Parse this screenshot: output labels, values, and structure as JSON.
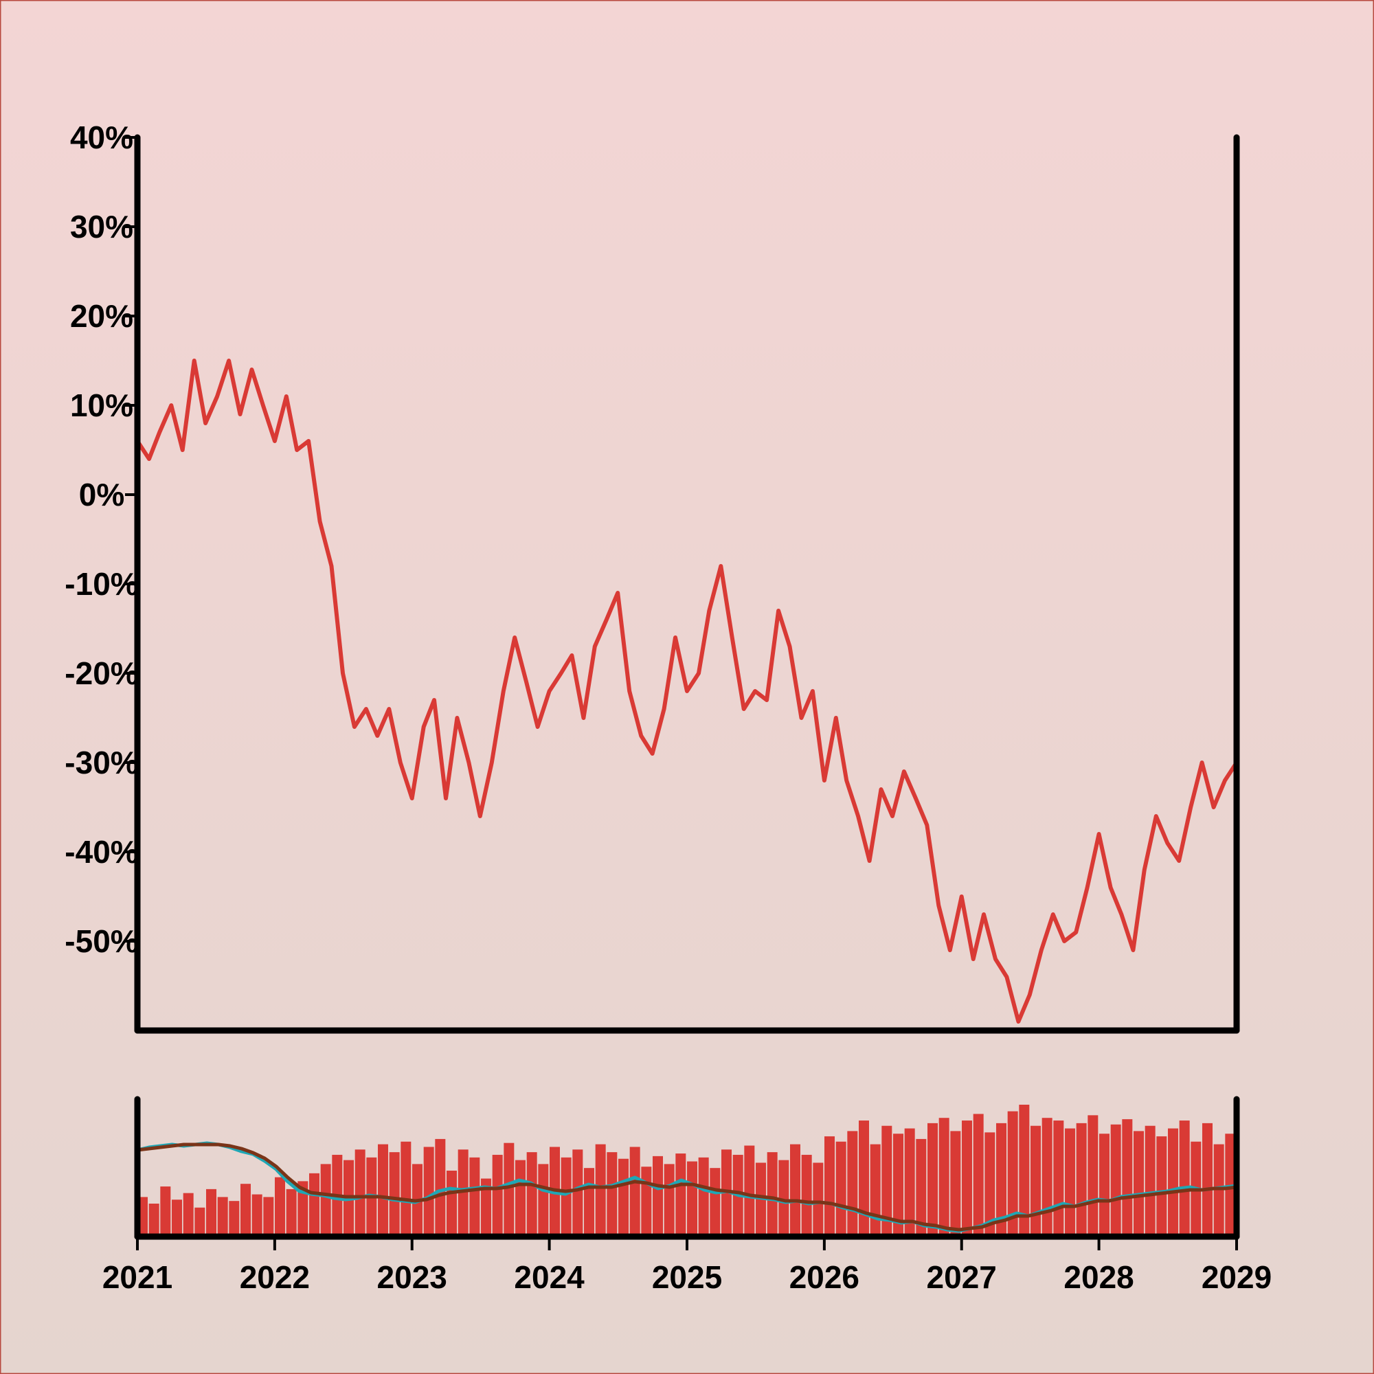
{
  "colors": {
    "background_top": "#f3d5d4",
    "background_bottom": "#e5d5cf",
    "border": "#b84a40",
    "price_line": "#d93a35",
    "volume_bar": "#d93a35",
    "ma_fast": "#1fa7b5",
    "ma_slow": "#7a3418",
    "axis": "#000000"
  },
  "chart_data": {
    "type": "line",
    "title": "",
    "xlabel": "",
    "ylabel": "",
    "x_ticks": [
      "2021",
      "2022",
      "2023",
      "2024",
      "2025",
      "2026",
      "2027",
      "2028",
      "2029"
    ],
    "y_ticks": [
      "40%",
      "30%",
      "20%",
      "10%",
      "0%",
      "-10%",
      "-20%",
      "-30%",
      "-40%",
      "-50%"
    ],
    "xlim": [
      "2021-01-01",
      "2029-01-01"
    ],
    "ylim": [
      -60,
      40
    ],
    "grid": false,
    "legend": "none",
    "series": [
      {
        "type": "line",
        "points": [
          [
            "2021-01",
            6
          ],
          [
            "2021-02",
            4
          ],
          [
            "2021-03",
            7
          ],
          [
            "2021-04",
            10
          ],
          [
            "2021-05",
            5
          ],
          [
            "2021-06",
            15
          ],
          [
            "2021-07",
            8
          ],
          [
            "2021-08",
            11
          ],
          [
            "2021-09",
            15
          ],
          [
            "2021-10",
            9
          ],
          [
            "2021-11",
            14
          ],
          [
            "2021-12",
            10
          ],
          [
            "2022-01",
            6
          ],
          [
            "2022-02",
            11
          ],
          [
            "2022-03",
            5
          ],
          [
            "2022-04",
            6
          ],
          [
            "2022-05",
            -3
          ],
          [
            "2022-06",
            -8
          ],
          [
            "2022-07",
            -20
          ],
          [
            "2022-08",
            -26
          ],
          [
            "2022-09",
            -24
          ],
          [
            "2022-10",
            -27
          ],
          [
            "2022-11",
            -24
          ],
          [
            "2022-12",
            -30
          ],
          [
            "2023-01",
            -34
          ],
          [
            "2023-02",
            -26
          ],
          [
            "2023-03",
            -23
          ],
          [
            "2023-04",
            -34
          ],
          [
            "2023-05",
            -25
          ],
          [
            "2023-06",
            -30
          ],
          [
            "2023-07",
            -36
          ],
          [
            "2023-08",
            -30
          ],
          [
            "2023-09",
            -22
          ],
          [
            "2023-10",
            -16
          ],
          [
            "2023-11",
            -21
          ],
          [
            "2023-12",
            -26
          ],
          [
            "2024-01",
            -22
          ],
          [
            "2024-02",
            -20
          ],
          [
            "2024-03",
            -18
          ],
          [
            "2024-04",
            -25
          ],
          [
            "2024-05",
            -17
          ],
          [
            "2024-06",
            -14
          ],
          [
            "2024-07",
            -11
          ],
          [
            "2024-08",
            -22
          ],
          [
            "2024-09",
            -27
          ],
          [
            "2024-10",
            -29
          ],
          [
            "2024-11",
            -24
          ],
          [
            "2024-12",
            -16
          ],
          [
            "2025-01",
            -22
          ],
          [
            "2025-02",
            -20
          ],
          [
            "2025-03",
            -13
          ],
          [
            "2025-04",
            -8
          ],
          [
            "2025-05",
            -16
          ],
          [
            "2025-06",
            -24
          ],
          [
            "2025-07",
            -22
          ],
          [
            "2025-08",
            -23
          ],
          [
            "2025-09",
            -13
          ],
          [
            "2025-10",
            -17
          ],
          [
            "2025-11",
            -25
          ],
          [
            "2025-12",
            -22
          ],
          [
            "2026-01",
            -32
          ],
          [
            "2026-02",
            -25
          ],
          [
            "2026-03",
            -32
          ],
          [
            "2026-04",
            -36
          ],
          [
            "2026-05",
            -41
          ],
          [
            "2026-06",
            -33
          ],
          [
            "2026-07",
            -36
          ],
          [
            "2026-08",
            -31
          ],
          [
            "2026-09",
            -34
          ],
          [
            "2026-10",
            -37
          ],
          [
            "2026-11",
            -46
          ],
          [
            "2026-12",
            -51
          ],
          [
            "2027-01",
            -45
          ],
          [
            "2027-02",
            -52
          ],
          [
            "2027-03",
            -47
          ],
          [
            "2027-04",
            -52
          ],
          [
            "2027-05",
            -54
          ],
          [
            "2027-06",
            -59
          ],
          [
            "2027-07",
            -56
          ],
          [
            "2027-08",
            -51
          ],
          [
            "2027-09",
            -47
          ],
          [
            "2027-10",
            -50
          ],
          [
            "2027-11",
            -49
          ],
          [
            "2027-12",
            -44
          ],
          [
            "2028-01",
            -38
          ],
          [
            "2028-02",
            -44
          ],
          [
            "2028-03",
            -47
          ],
          [
            "2028-04",
            -51
          ],
          [
            "2028-05",
            -42
          ],
          [
            "2028-06",
            -36
          ],
          [
            "2028-07",
            -39
          ],
          [
            "2028-08",
            -41
          ],
          [
            "2028-09",
            -35
          ],
          [
            "2028-10",
            -30
          ],
          [
            "2028-11",
            -35
          ],
          [
            "2028-12",
            -32
          ],
          [
            "2029-01",
            -30
          ]
        ]
      },
      {
        "type": "volume_bar",
        "values": [
          0.3,
          0.25,
          0.38,
          0.28,
          0.33,
          0.22,
          0.36,
          0.3,
          0.27,
          0.4,
          0.32,
          0.3,
          0.45,
          0.36,
          0.42,
          0.48,
          0.55,
          0.62,
          0.58,
          0.66,
          0.6,
          0.7,
          0.64,
          0.72,
          0.55,
          0.68,
          0.74,
          0.5,
          0.66,
          0.6,
          0.44,
          0.62,
          0.71,
          0.58,
          0.64,
          0.55,
          0.68,
          0.6,
          0.66,
          0.52,
          0.7,
          0.64,
          0.59,
          0.68,
          0.53,
          0.61,
          0.55,
          0.63,
          0.57,
          0.6,
          0.52,
          0.66,
          0.62,
          0.69,
          0.56,
          0.64,
          0.58,
          0.7,
          0.62,
          0.56,
          0.76,
          0.72,
          0.8,
          0.88,
          0.7,
          0.84,
          0.78,
          0.82,
          0.74,
          0.86,
          0.9,
          0.8,
          0.88,
          0.93,
          0.79,
          0.86,
          0.95,
          1.0,
          0.84,
          0.9,
          0.88,
          0.82,
          0.86,
          0.92,
          0.78,
          0.85,
          0.89,
          0.8,
          0.84,
          0.76,
          0.82,
          0.88,
          0.72,
          0.86,
          0.7,
          0.78
        ]
      },
      {
        "type": "moving_average",
        "values": [
          0.58,
          0.6,
          0.61,
          0.62,
          0.61,
          0.62,
          0.63,
          0.62,
          0.6,
          0.57,
          0.55,
          0.5,
          0.44,
          0.35,
          0.28,
          0.26,
          0.25,
          0.23,
          0.22,
          0.23,
          0.25,
          0.24,
          0.22,
          0.21,
          0.2,
          0.23,
          0.28,
          0.3,
          0.29,
          0.3,
          0.31,
          0.3,
          0.33,
          0.36,
          0.34,
          0.29,
          0.27,
          0.26,
          0.3,
          0.33,
          0.31,
          0.32,
          0.35,
          0.38,
          0.34,
          0.3,
          0.32,
          0.36,
          0.33,
          0.29,
          0.27,
          0.28,
          0.25,
          0.24,
          0.23,
          0.22,
          0.2,
          0.21,
          0.19,
          0.2,
          0.19,
          0.16,
          0.14,
          0.11,
          0.08,
          0.07,
          0.05,
          0.06,
          0.03,
          0.02,
          0.0,
          -0.01,
          0.01,
          0.03,
          0.07,
          0.09,
          0.12,
          0.1,
          0.13,
          0.16,
          0.19,
          0.17,
          0.2,
          0.22,
          0.21,
          0.24,
          0.25,
          0.26,
          0.27,
          0.28,
          0.3,
          0.31,
          0.29,
          0.3,
          0.31,
          0.32
        ]
      },
      {
        "type": "moving_average",
        "values": [
          0.58,
          0.59,
          0.6,
          0.61,
          0.62,
          0.62,
          0.62,
          0.62,
          0.61,
          0.59,
          0.56,
          0.52,
          0.46,
          0.38,
          0.31,
          0.27,
          0.26,
          0.25,
          0.24,
          0.24,
          0.24,
          0.24,
          0.23,
          0.22,
          0.21,
          0.22,
          0.25,
          0.27,
          0.28,
          0.29,
          0.3,
          0.3,
          0.31,
          0.33,
          0.33,
          0.31,
          0.29,
          0.28,
          0.29,
          0.31,
          0.31,
          0.31,
          0.33,
          0.35,
          0.34,
          0.32,
          0.31,
          0.33,
          0.33,
          0.31,
          0.29,
          0.28,
          0.27,
          0.25,
          0.24,
          0.23,
          0.21,
          0.21,
          0.2,
          0.2,
          0.19,
          0.17,
          0.15,
          0.12,
          0.1,
          0.08,
          0.06,
          0.06,
          0.04,
          0.03,
          0.01,
          0.0,
          0.01,
          0.02,
          0.05,
          0.07,
          0.1,
          0.1,
          0.12,
          0.14,
          0.17,
          0.17,
          0.19,
          0.21,
          0.21,
          0.23,
          0.24,
          0.25,
          0.26,
          0.27,
          0.28,
          0.29,
          0.29,
          0.3,
          0.3,
          0.31
        ]
      }
    ]
  }
}
